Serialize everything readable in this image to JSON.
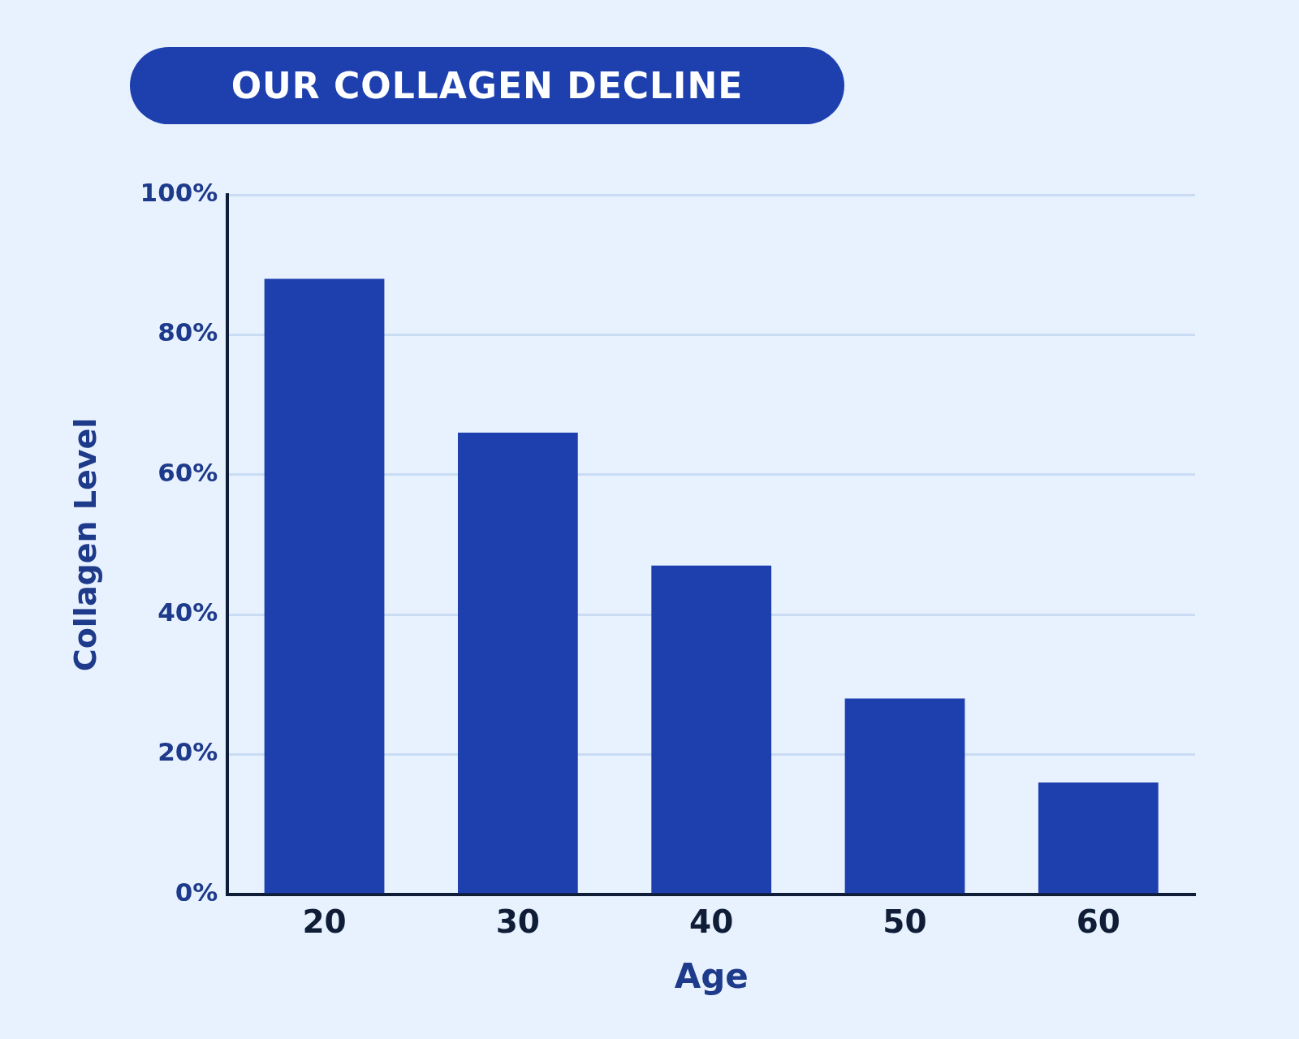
{
  "chart_data": {
    "type": "bar",
    "title": "OUR COLLAGEN DECLINE",
    "xlabel": "Age",
    "ylabel": "Collagen Level",
    "categories": [
      "20",
      "30",
      "40",
      "50",
      "60"
    ],
    "values": [
      88,
      66,
      47,
      28,
      16
    ],
    "color": "#1e40af",
    "ylim": [
      0,
      100
    ],
    "yticks": [
      {
        "value": 0,
        "label": "0%"
      },
      {
        "value": 20,
        "label": "20%"
      },
      {
        "value": 40,
        "label": "40%"
      },
      {
        "value": 60,
        "label": "60%"
      },
      {
        "value": 80,
        "label": "80%"
      },
      {
        "value": 100,
        "label": "100%"
      }
    ],
    "grid": "y",
    "legend": false
  }
}
